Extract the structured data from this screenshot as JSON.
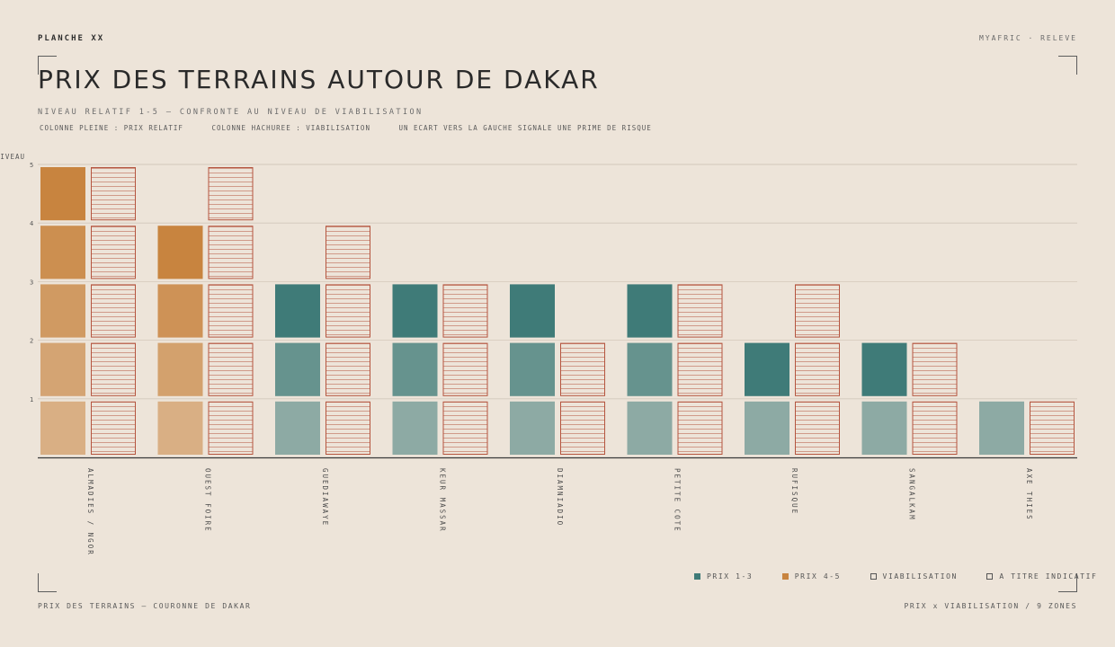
{
  "header": {
    "plate": "PLANCHE XX",
    "brand": "MYAFRIC · RELEVE",
    "title": "PRIX DES TERRAINS AUTOUR DE DAKAR",
    "subtitle": "NIVEAU RELATIF 1-5 — CONFRONTE AU NIVEAU DE VIABILISATION",
    "notes": [
      "COLONNE PLEINE : PRIX RELATIF",
      "COLONNE HACHUREE : VIABILISATION",
      "UN ECART VERS LA GAUCHE SIGNALE UNE PRIME DE RISQUE"
    ]
  },
  "legend": {
    "items": [
      {
        "label": "PRIX 1-3",
        "kind": "fill",
        "color": "#3f7b78"
      },
      {
        "label": "PRIX 4-5",
        "kind": "fill",
        "color": "#c8843f"
      },
      {
        "label": "VIABILISATION",
        "kind": "outline",
        "color": "#555555"
      },
      {
        "label": "A TITRE INDICATIF",
        "kind": "outline",
        "color": "#555555"
      }
    ]
  },
  "footer": {
    "left": "PRIX DES TERRAINS — COURONNE DE DAKAR",
    "right": "PRIX x VIABILISATION / 9 ZONES"
  },
  "colors": {
    "teal": "#3f7b78",
    "orange": "#c8843f",
    "hatch": "#b5553f",
    "axis": "#3a3a3a",
    "grid": "#d3c8ba"
  },
  "chart_data": {
    "type": "bar",
    "ylabel": "NIVEAU",
    "ylim": [
      0,
      5
    ],
    "yticks": [
      1,
      2,
      3,
      4,
      5
    ],
    "categories": [
      "ALMADIES / NGOR",
      "OUEST FOIRE",
      "GUEDIAWAYE",
      "KEUR MASSAR",
      "DIAMNIADIO",
      "PETITE COTE",
      "RUFISQUE",
      "SANGALKAM",
      "AXE THIES"
    ],
    "series": [
      {
        "name": "PRIX",
        "values": [
          5,
          4,
          3,
          3,
          3,
          3,
          2,
          2,
          1
        ]
      },
      {
        "name": "VIABILISATION",
        "values": [
          5,
          5,
          4,
          3,
          2,
          3,
          3,
          2,
          1
        ]
      }
    ],
    "grid": true
  }
}
